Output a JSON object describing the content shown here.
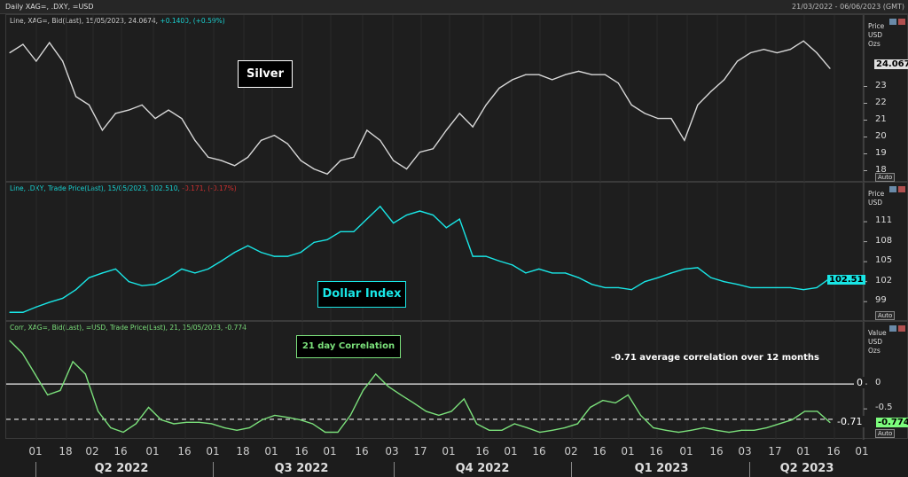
{
  "window": {
    "title": "Daily XAG=, .DXY, =USD",
    "date_range": "21/03/2022 - 06/06/2023 (GMT)"
  },
  "panes": [
    {
      "legend_main": "Line, XAG=, Bid(Last), 15/05/2023, 24.0674,",
      "legend_change": "+0.1400, (+0.59%)",
      "axis_units": [
        "Price",
        "USD",
        "Ozs"
      ],
      "last_value": "24.067",
      "auto": "Auto",
      "annotation": "Silver"
    },
    {
      "legend_main": "Line, .DXY, Trade Price(Last), 15/05/2023, 102.510,",
      "legend_change": "-0.171, (-0.17%)",
      "axis_units": [
        "Price",
        "USD"
      ],
      "last_value": "102.51",
      "auto": "Auto",
      "annotation": "Dollar Index"
    },
    {
      "legend_main": "Corr, XAG=, Bid(Last), =USD, Trade Price(Last),  21, 15/05/2023, -0.774",
      "axis_units": [
        "Value",
        "USD",
        "Ozs"
      ],
      "last_value": "-0.774",
      "auto": "Auto",
      "annotation": "21 day Correlation",
      "note": "-0.71 average correlation over 12 months",
      "zero_label": "0",
      "avg_label": "-0.71"
    }
  ],
  "colors": {
    "silver": "#d8d8d8",
    "dxy": "#19e6e6",
    "corr": "#7be07b",
    "bg": "#1e1e1e"
  },
  "chart_data": [
    {
      "type": "line",
      "title": "Silver",
      "series": [
        {
          "name": "XAG=",
          "values": [
            25.0,
            25.5,
            24.5,
            25.6,
            24.5,
            22.4,
            21.9,
            20.4,
            21.4,
            21.6,
            21.9,
            21.1,
            21.6,
            21.1,
            19.8,
            18.8,
            18.6,
            18.3,
            18.8,
            19.8,
            20.1,
            19.6,
            18.6,
            18.1,
            17.8,
            18.6,
            18.8,
            20.4,
            19.8,
            18.6,
            18.1,
            19.1,
            19.3,
            20.4,
            21.4,
            20.6,
            21.9,
            22.9,
            23.4,
            23.7,
            23.7,
            23.4,
            23.7,
            23.9,
            23.7,
            23.7,
            23.2,
            21.9,
            21.4,
            21.1,
            21.1,
            19.8,
            21.9,
            22.7,
            23.4,
            24.5,
            25.0,
            25.2,
            25.0,
            25.2,
            25.7,
            25.0,
            24.07
          ]
        }
      ],
      "yticks": [
        "23",
        "22",
        "21",
        "20",
        "19",
        "18"
      ],
      "ylim": [
        17.5,
        26.5
      ]
    },
    {
      "type": "line",
      "title": "Dollar Index",
      "series": [
        {
          "name": ".DXY",
          "values": [
            97.4,
            97.4,
            98.2,
            98.9,
            99.5,
            100.8,
            102.6,
            103.3,
            103.9,
            102,
            101.4,
            101.6,
            102.6,
            103.9,
            103.3,
            103.9,
            105.1,
            106.4,
            107.4,
            106.4,
            105.8,
            105.8,
            106.4,
            107.9,
            108.3,
            109.5,
            109.5,
            111.4,
            113.3,
            110.8,
            112,
            112.6,
            112,
            110.1,
            111.4,
            105.8,
            105.8,
            105.1,
            104.5,
            103.3,
            103.9,
            103.3,
            103.3,
            102.6,
            101.6,
            101.1,
            101.1,
            100.8,
            102,
            102.6,
            103.3,
            103.9,
            104.1,
            102.6,
            102,
            101.6,
            101.1,
            101.1,
            101.1,
            101.1,
            100.8,
            101.1,
            102.51
          ]
        }
      ],
      "yticks": [
        "111",
        "108",
        "105",
        "102",
        "99"
      ],
      "ylim": [
        96.5,
        115
      ]
    },
    {
      "type": "line",
      "title": "21 day Correlation",
      "series": [
        {
          "name": "Corr",
          "values": [
            0.87,
            0.62,
            0.2,
            -0.22,
            -0.13,
            0.45,
            0.2,
            -0.55,
            -0.88,
            -0.97,
            -0.8,
            -0.47,
            -0.72,
            -0.8,
            -0.77,
            -0.77,
            -0.8,
            -0.88,
            -0.93,
            -0.88,
            -0.72,
            -0.63,
            -0.67,
            -0.72,
            -0.8,
            -0.97,
            -0.97,
            -0.63,
            -0.13,
            0.2,
            -0.05,
            -0.22,
            -0.38,
            -0.55,
            -0.63,
            -0.55,
            -0.3,
            -0.8,
            -0.93,
            -0.93,
            -0.8,
            -0.88,
            -0.97,
            -0.93,
            -0.88,
            -0.8,
            -0.47,
            -0.33,
            -0.38,
            -0.22,
            -0.63,
            -0.88,
            -0.93,
            -0.97,
            -0.93,
            -0.88,
            -0.93,
            -0.97,
            -0.93,
            -0.93,
            -0.88,
            -0.8,
            -0.72,
            -0.55,
            -0.55,
            -0.774
          ]
        }
      ],
      "yticks": [
        "0",
        "-0.5"
      ],
      "ylim": [
        -1.05,
        1.0
      ],
      "reference_lines": [
        0,
        -0.71
      ]
    }
  ],
  "xaxis": {
    "ticks": [
      "01",
      "18",
      "02",
      "16",
      "01",
      "16",
      "01",
      "18",
      "01",
      "16",
      "01",
      "16",
      "03",
      "17",
      "01",
      "16",
      "01",
      "16",
      "02",
      "16",
      "01",
      "16",
      "01",
      "16",
      "03",
      "17",
      "01",
      "16",
      "01"
    ],
    "quarters": [
      "Q2 2022",
      "Q3 2022",
      "Q4 2022",
      "Q1 2023",
      "Q2 2023"
    ]
  }
}
